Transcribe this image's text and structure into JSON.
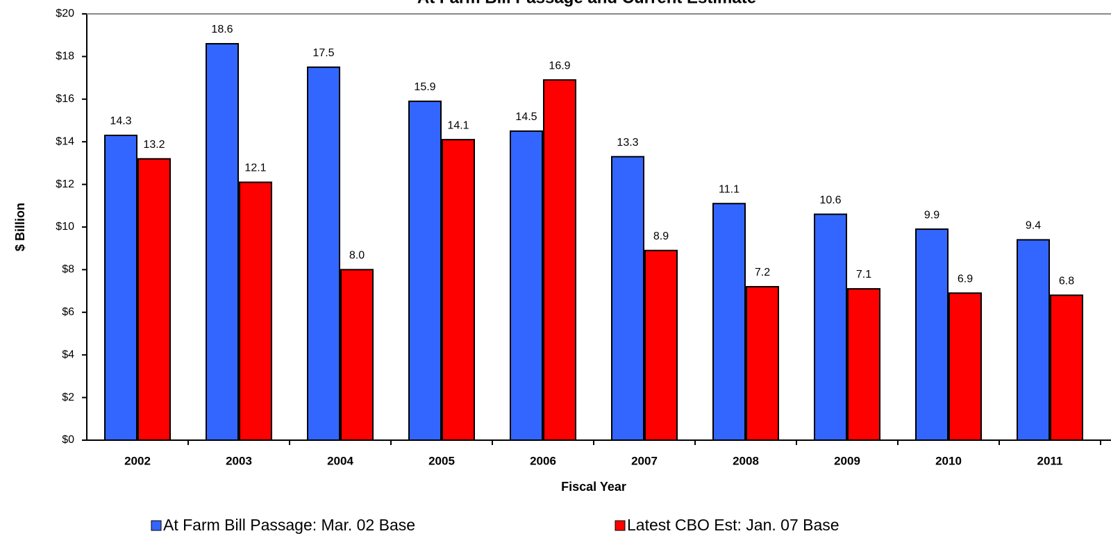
{
  "chart_data": {
    "type": "bar",
    "title": "At Farm Bill Passage and Current Estimate",
    "y_label": "$ Billion",
    "x_label": "Fiscal Year",
    "categories": [
      "2002",
      "2003",
      "2004",
      "2005",
      "2006",
      "2007",
      "2008",
      "2009",
      "2010",
      "2011"
    ],
    "series": [
      {
        "name": "At Farm Bill Passage:  Mar. 02 Base",
        "color": "#3366ff",
        "values": [
          14.3,
          18.6,
          17.5,
          15.9,
          14.5,
          13.3,
          11.1,
          10.6,
          9.9,
          9.4
        ],
        "value_labels": [
          "14.3",
          "18.6",
          "17.5",
          "15.9",
          "14.5",
          "13.3",
          "11.1",
          "10.6",
          "9.9",
          "9.4"
        ]
      },
      {
        "name": "Latest CBO Est:  Jan. 07 Base",
        "color": "#ff0000",
        "values": [
          13.2,
          12.1,
          8,
          14.1,
          16.9,
          8.9,
          7.2,
          7.1,
          6.9,
          6.8
        ],
        "value_labels": [
          "13.2",
          "12.1",
          "8.0",
          "14.1",
          "16.9",
          "8.9",
          "7.2",
          "7.1",
          "6.9",
          "6.8"
        ]
      }
    ],
    "ylim": [
      0,
      20
    ],
    "yticks": [
      {
        "value": 0,
        "label": "$0"
      },
      {
        "value": 2,
        "label": "$2"
      },
      {
        "value": 4,
        "label": "$4"
      },
      {
        "value": 6,
        "label": "$6"
      },
      {
        "value": 8,
        "label": "$8"
      },
      {
        "value": 10,
        "label": "$10"
      },
      {
        "value": 12,
        "label": "$12"
      },
      {
        "value": 14,
        "label": "$14"
      },
      {
        "value": 16,
        "label": "$16"
      },
      {
        "value": 18,
        "label": "$18"
      },
      {
        "value": 20,
        "label": "$20"
      }
    ],
    "grid": false
  }
}
